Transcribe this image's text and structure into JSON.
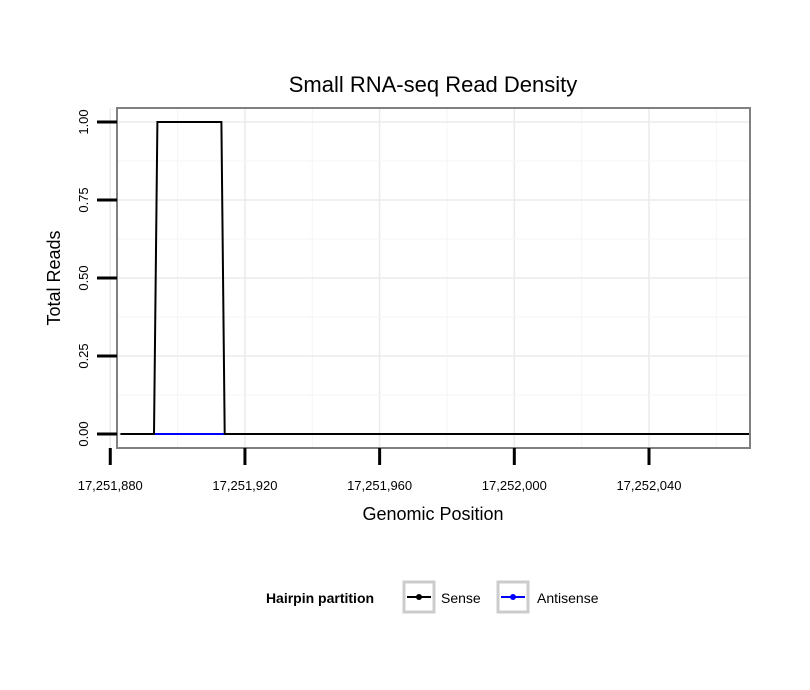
{
  "chart_data": {
    "type": "line",
    "title": "Small RNA-seq Read Density",
    "xlabel": "Genomic Position",
    "ylabel": "Total Reads",
    "xlim": [
      17251882,
      17252070
    ],
    "ylim": [
      -0.045,
      1.045
    ],
    "x_ticks": [
      17251880,
      17251920,
      17251960,
      17252000,
      17252040
    ],
    "x_tick_labels": [
      "17,251,880",
      "17,251,920",
      "17,251,960",
      "17,252,000",
      "17,252,040"
    ],
    "y_ticks": [
      0,
      0.25,
      0.5,
      0.75,
      1
    ],
    "y_tick_labels": [
      "0.00",
      "0.25",
      "0.50",
      "0.75",
      "1.00"
    ],
    "grid": true,
    "legend": {
      "title": "Hairpin partition",
      "position": "bottom"
    },
    "series": [
      {
        "name": "Sense",
        "color": "#000000",
        "x": [
          17251883,
          17251893,
          17251894,
          17251913,
          17251914,
          17252070
        ],
        "y": [
          0,
          0,
          1,
          1,
          0,
          0
        ]
      },
      {
        "name": "Antisense",
        "color": "#0000ff",
        "x": [
          17251893,
          17251914
        ],
        "y": [
          0,
          0
        ]
      }
    ]
  }
}
